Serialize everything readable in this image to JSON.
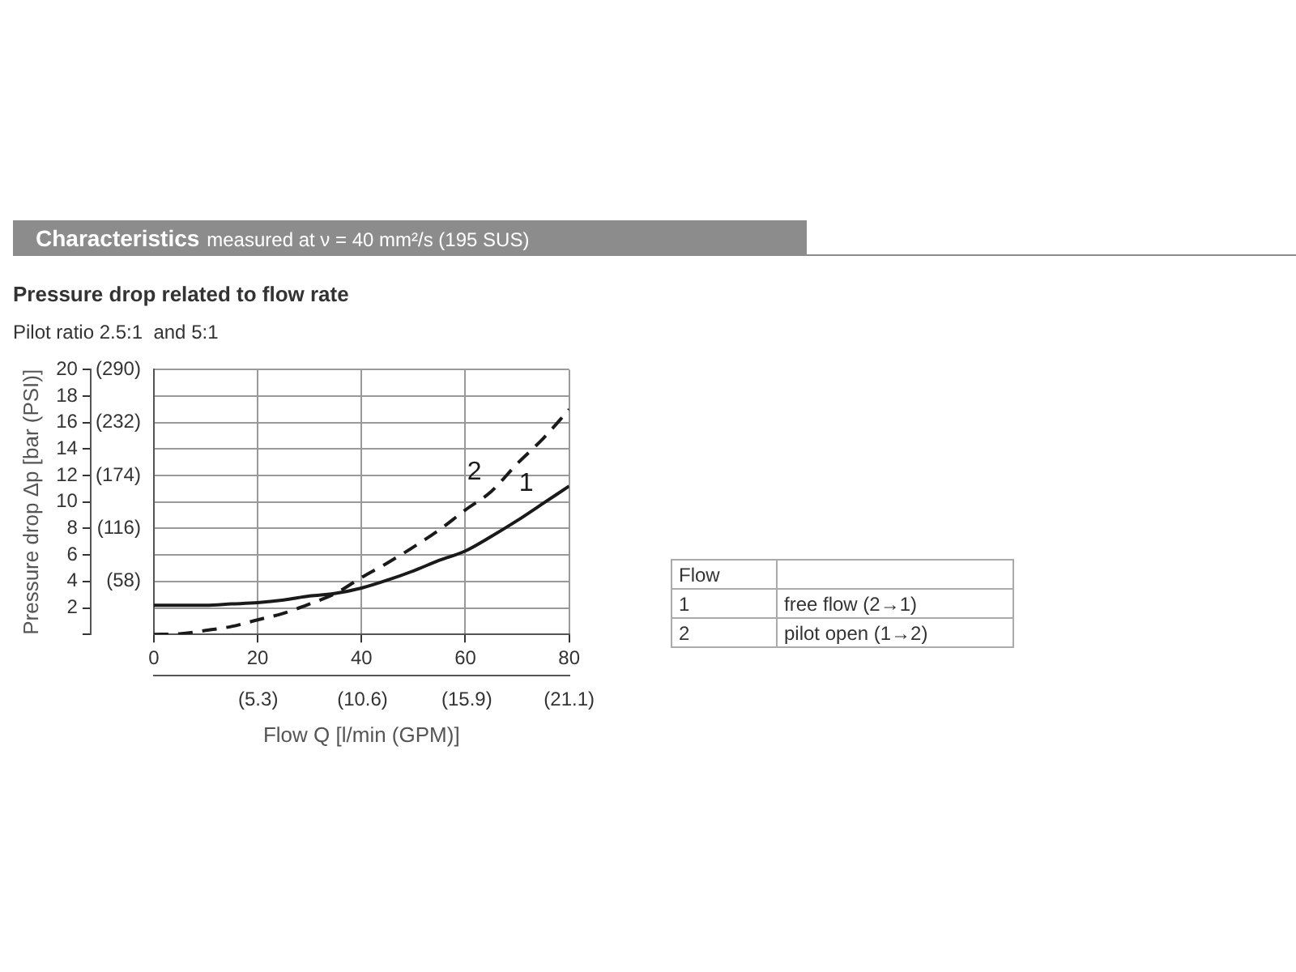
{
  "chart_data": {
    "type": "line",
    "title": "Characteristics",
    "subtitle": "measured at ν = 40 mm²/s (195 SUS)",
    "annotations": [
      "Pressure drop related to flow rate",
      "Pilot ratio 2.5:1  and 5:1",
      "Flow",
      "1",
      "free flow (2→1)",
      "2",
      "pilot open (1→2)"
    ],
    "xlabel": "Flow Q [l/min (GPM)]",
    "ylabel": "Pressure drop Δp [bar (PSI)]",
    "x": [
      0,
      5,
      10,
      15,
      20,
      25,
      30,
      35,
      40,
      45,
      50,
      55,
      60,
      65,
      70,
      75,
      80
    ],
    "series": [
      {
        "name": "1",
        "color": "#1a1a1a",
        "line_style": "solid",
        "values": [
          2.2,
          2.2,
          2.2,
          2.3,
          2.4,
          2.6,
          2.9,
          3.1,
          3.5,
          4.1,
          4.8,
          5.6,
          6.3,
          7.4,
          8.6,
          9.9,
          11.2
        ]
      },
      {
        "name": "2",
        "color": "#1a1a1a",
        "line_style": "dashed",
        "values": [
          0.0,
          0.05,
          0.3,
          0.6,
          1.1,
          1.6,
          2.3,
          3.1,
          4.3,
          5.4,
          6.6,
          7.9,
          9.4,
          10.8,
          12.9,
          14.8,
          17.0
        ]
      }
    ],
    "xlim": [
      0,
      80
    ],
    "xticks": [
      0,
      20,
      40,
      60,
      80
    ],
    "ylim": [
      0,
      20
    ],
    "yticks": [
      {
        "value": 0,
        "label": null
      },
      2,
      4,
      6,
      8,
      10,
      12,
      14,
      16,
      18,
      20
    ],
    "y2lim": [
      0,
      290
    ],
    "y2ticks": [
      {
        "value": 0,
        "label": null
      },
      {
        "value": 58,
        "label": "(58)"
      },
      {
        "value": 116,
        "label": "(116)"
      },
      {
        "value": 174,
        "label": "(174)"
      },
      {
        "value": 232,
        "label": "(232)"
      },
      {
        "value": 290,
        "label": "(290)"
      }
    ],
    "x2lim": [
      0,
      21.1
    ],
    "x2ticks": [
      {
        "value": 0,
        "label": null
      },
      {
        "value": 5.3,
        "label": "(5.3)"
      },
      {
        "value": 10.6,
        "label": "(10.6)"
      },
      {
        "value": 15.9,
        "label": "(15.9)"
      },
      {
        "value": 21.1,
        "label": "(21.1)"
      }
    ],
    "grid": true,
    "legend": false,
    "marker": "none"
  }
}
